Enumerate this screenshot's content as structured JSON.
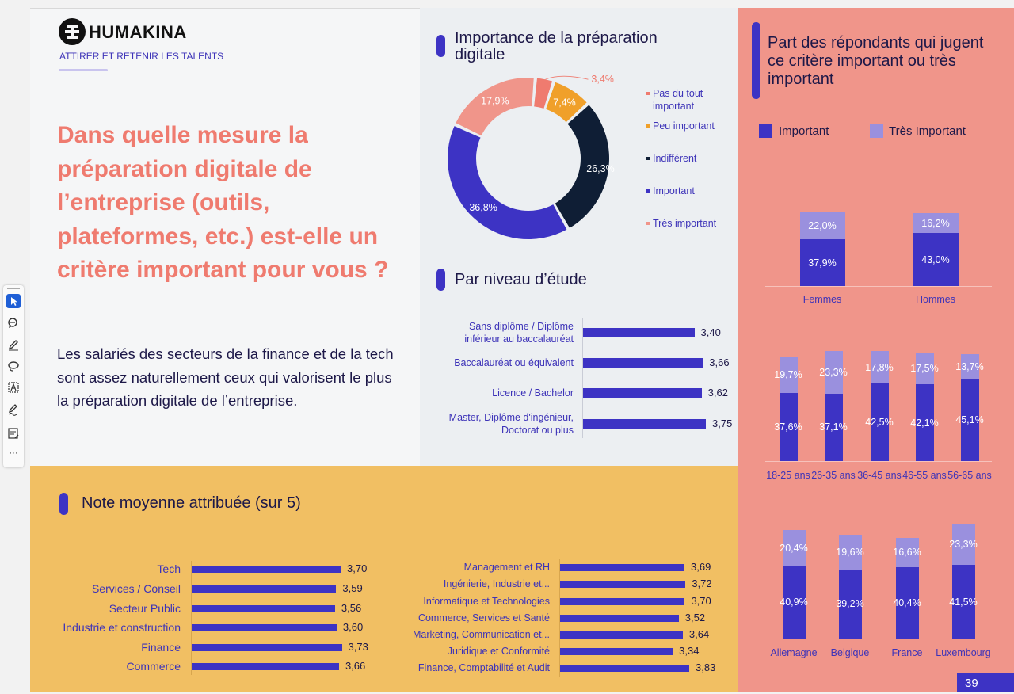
{
  "brand": {
    "name": "HUMAKINA",
    "tagline": "ATTIRER ET RETENIR LES TALENTS"
  },
  "colors": {
    "indigo": "#3d33c4",
    "light_indigo": "#9a90de",
    "salmon": "#f0958a",
    "coral": "#ef7b6f",
    "orange": "#f0a02a",
    "navy": "#0f1e35",
    "pink": "#f0958a",
    "yellow": "#f1bf63"
  },
  "question": "Dans quelle mesure la préparation digitale de l’entreprise (outils, plateformes, etc.) est-elle un critère important pour vous ?",
  "body_text": "Les salariés des secteurs de la finance et de la tech sont assez naturellement ceux qui valorisent le plus la préparation digitale de l’entreprise.",
  "page_number": "39",
  "toolbar": [
    "select-icon",
    "comment-icon",
    "pen-icon",
    "lasso-icon",
    "text-box-icon",
    "signature-icon",
    "form-icon",
    "more-icon"
  ],
  "toolbar_more": "···",
  "chart_data": [
    {
      "id": "donut",
      "type": "pie",
      "title": "Importance de la préparation digitale",
      "categories": [
        "Pas du tout important",
        "Peu important",
        "Indifférent",
        "Important",
        "Très important"
      ],
      "values": [
        3.4,
        7.4,
        26.3,
        36.8,
        17.9
      ],
      "labels": [
        "3,4%",
        "7,4%",
        "26,3%",
        "36,8%",
        "17,9%"
      ],
      "colors": [
        "#ef7b6f",
        "#f0a02a",
        "#0f1e35",
        "#3d33c4",
        "#f0958a"
      ],
      "legend_placement": "right"
    },
    {
      "id": "education",
      "type": "bar",
      "title": "Par niveau d’étude",
      "categories": [
        "Sans diplôme / Diplôme inférieur au baccalauréat",
        "Baccalauréat ou équivalent",
        "Licence / Bachelor",
        "Master, Diplôme d'ingénieur, Doctorat ou plus"
      ],
      "category_lines": [
        [
          "Sans diplôme / Diplôme",
          "inférieur au baccalauréat"
        ],
        [
          "Baccalauréat ou équivalent"
        ],
        [
          "Licence / Bachelor"
        ],
        [
          "Master, Diplôme d'ingénieur,",
          "Doctorat ou plus"
        ]
      ],
      "values": [
        3.4,
        3.66,
        3.62,
        3.75
      ],
      "labels": [
        "3,40",
        "3,66",
        "3,62",
        "3,75"
      ],
      "orientation": "horizontal"
    },
    {
      "id": "gender",
      "type": "bar",
      "stacked": true,
      "title": "Part des répondants qui jugent ce critère important ou très important",
      "legend": [
        "Important",
        "Très Important"
      ],
      "categories": [
        "Femmes",
        "Hommes"
      ],
      "series": [
        {
          "name": "Important",
          "values": [
            37.9,
            43.0
          ],
          "labels": [
            "37,9%",
            "43,0%"
          ]
        },
        {
          "name": "Très Important",
          "values": [
            22.0,
            16.2
          ],
          "labels": [
            "22,0%",
            "16,2%"
          ]
        }
      ]
    },
    {
      "id": "age",
      "type": "bar",
      "stacked": true,
      "categories": [
        "18-25 ans",
        "26-35 ans",
        "36-45 ans",
        "46-55 ans",
        "56-65 ans"
      ],
      "series": [
        {
          "name": "Important",
          "values": [
            37.6,
            37.1,
            42.5,
            42.1,
            45.1
          ],
          "labels": [
            "37,6%",
            "37,1%",
            "42,5%",
            "42,1%",
            "45,1%"
          ]
        },
        {
          "name": "Très Important",
          "values": [
            19.7,
            23.3,
            17.8,
            17.5,
            13.7
          ],
          "labels": [
            "19,7%",
            "23,3%",
            "17,8%",
            "17,5%",
            "13,7%"
          ]
        }
      ]
    },
    {
      "id": "country",
      "type": "bar",
      "stacked": true,
      "categories": [
        "Allemagne",
        "Belgique",
        "France",
        "Luxembourg"
      ],
      "series": [
        {
          "name": "Important",
          "values": [
            40.9,
            39.2,
            40.4,
            41.5
          ],
          "labels": [
            "40,9%",
            "39,2%",
            "40,4%",
            "41,5%"
          ]
        },
        {
          "name": "Très Important",
          "values": [
            20.4,
            19.6,
            16.6,
            23.3
          ],
          "labels": [
            "20,4%",
            "19,6%",
            "16,6%",
            "23,3%"
          ]
        }
      ]
    },
    {
      "id": "sector",
      "type": "bar",
      "title": "Note moyenne attribuée (sur 5)",
      "categories": [
        "Tech",
        "Services / Conseil",
        "Secteur Public",
        "Industrie et construction",
        "Finance",
        "Commerce"
      ],
      "values": [
        3.7,
        3.59,
        3.56,
        3.6,
        3.73,
        3.66
      ],
      "labels": [
        "3,70",
        "3,59",
        "3,56",
        "3,60",
        "3,73",
        "3,66"
      ],
      "orientation": "horizontal"
    },
    {
      "id": "function",
      "type": "bar",
      "categories": [
        "Management et RH",
        "Ingénierie, Industrie et...",
        "Informatique et Technologies",
        "Commerce, Services et Santé",
        "Marketing, Communication et...",
        "Juridique et Conformité",
        "Finance, Comptabilité et Audit"
      ],
      "values": [
        3.69,
        3.72,
        3.7,
        3.52,
        3.64,
        3.34,
        3.83
      ],
      "labels": [
        "3,69",
        "3,72",
        "3,70",
        "3,52",
        "3,64",
        "3,34",
        "3,83"
      ],
      "orientation": "horizontal"
    }
  ]
}
